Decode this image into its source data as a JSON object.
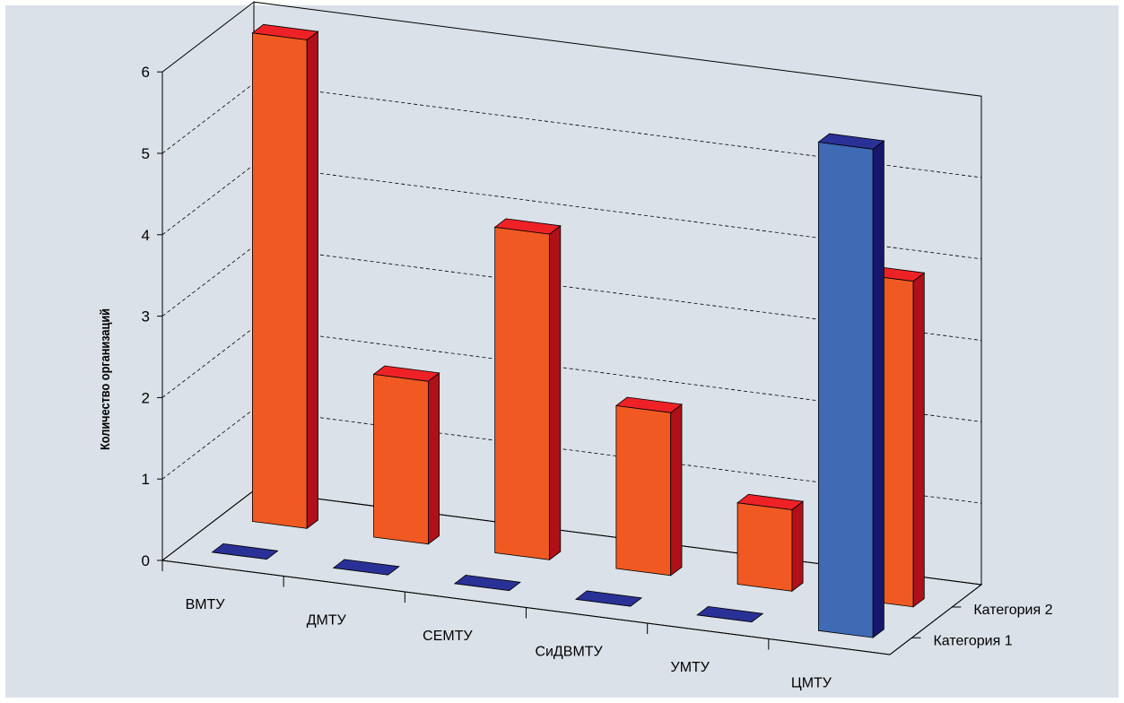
{
  "chart_data": {
    "type": "bar",
    "subtype": "3d-column",
    "ylabel": "Количество организаций",
    "xlabel": "",
    "title": "",
    "ylim": [
      0,
      6
    ],
    "yticks": [
      0,
      1,
      2,
      3,
      4,
      5,
      6
    ],
    "grid": "horizontal dashed",
    "categories": [
      "ВМТУ",
      "ДМТУ",
      "СЕМТУ",
      "СиДВМТУ",
      "УМТУ",
      "ЦМТУ"
    ],
    "series": [
      {
        "name": "Категория 1",
        "values": [
          0,
          0,
          0,
          0,
          0,
          6
        ],
        "color": "#3F6AB4"
      },
      {
        "name": "Категория 2",
        "values": [
          6,
          2,
          4,
          2,
          1,
          4
        ],
        "color": "#F05A22"
      }
    ]
  },
  "colors": {
    "background": "#DBE1E8",
    "grid": "#000000",
    "series1_front": "#3F6AB4",
    "series1_side": "#17186B",
    "series1_top": "#2A3196",
    "series2_front": "#F05A22",
    "series2_side": "#B01018",
    "series2_top": "#EE2226"
  }
}
